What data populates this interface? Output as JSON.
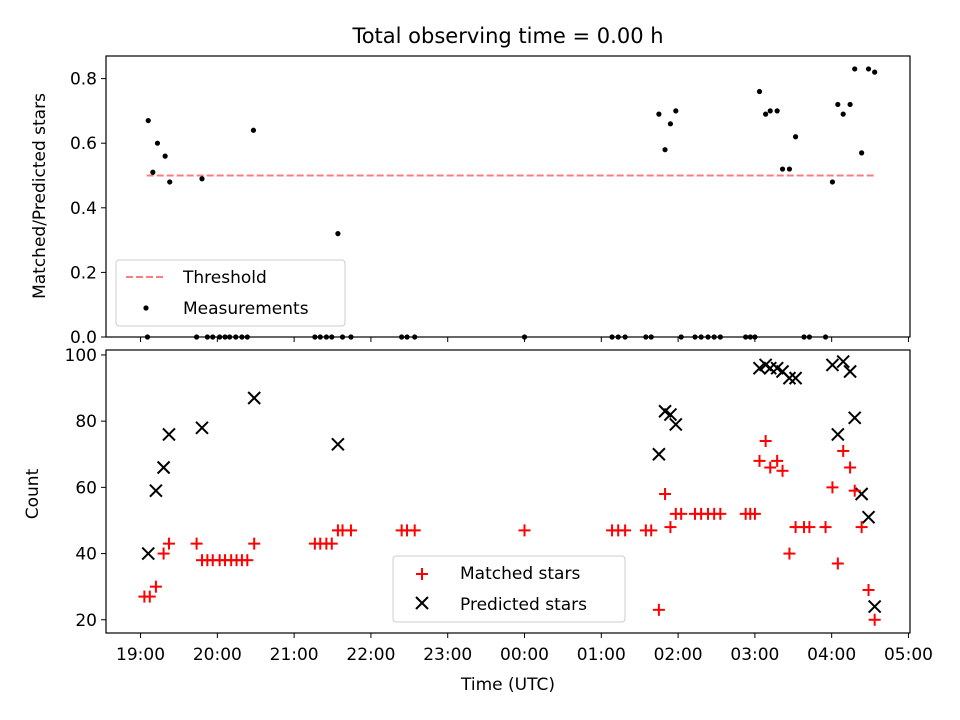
{
  "chart_data": [
    {
      "type": "scatter",
      "title": "Total observing time = 0.00 h",
      "ylabel": "Matched/Predicted stars",
      "xlabel": "",
      "xlim": [
        18.55,
        29.02
      ],
      "ylim": [
        0,
        0.87
      ],
      "yticks": [
        0.0,
        0.2,
        0.4,
        0.6,
        0.8
      ],
      "ytick_labels": [
        "0.0",
        "0.2",
        "0.4",
        "0.6",
        "0.8"
      ],
      "xticks": [
        19,
        20,
        21,
        22,
        23,
        24,
        25,
        26,
        27,
        28,
        29
      ],
      "legend": {
        "position": "lower-left",
        "entries": [
          {
            "label": "Threshold",
            "style": "dashed-line",
            "color": "#f77f7f"
          },
          {
            "label": "Measurements",
            "style": "dot",
            "color": "#000000"
          }
        ]
      },
      "threshold": {
        "name": "Threshold",
        "x": [
          19.08,
          28.57
        ],
        "y": 0.5,
        "color": "#f77f7f"
      },
      "series": [
        {
          "name": "Measurements",
          "color": "#000000",
          "x": [
            19.1,
            19.16,
            19.22,
            19.32,
            19.38,
            19.8,
            20.47,
            21.57,
            25.75,
            25.83,
            25.9,
            25.97,
            27.06,
            27.14,
            27.2,
            27.29,
            27.36,
            27.45,
            27.53,
            28.01,
            28.08,
            28.15,
            28.24,
            28.3,
            28.39,
            28.48,
            28.56,
            19.09,
            19.73,
            19.87,
            19.94,
            20.03,
            20.1,
            20.16,
            20.24,
            20.32,
            20.39,
            21.27,
            21.34,
            21.42,
            21.49,
            21.63,
            21.74,
            22.4,
            22.47,
            22.57,
            24.0,
            25.14,
            25.22,
            25.31,
            25.58,
            25.65,
            26.04,
            26.22,
            26.3,
            26.39,
            26.47,
            26.55,
            26.88,
            26.94,
            27.0,
            27.64,
            27.71,
            27.92
          ],
          "y": [
            0.67,
            0.51,
            0.6,
            0.56,
            0.48,
            0.49,
            0.64,
            0.32,
            0.69,
            0.58,
            0.66,
            0.7,
            0.76,
            0.69,
            0.7,
            0.7,
            0.52,
            0.52,
            0.62,
            0.48,
            0.72,
            0.69,
            0.72,
            0.83,
            0.57,
            0.83,
            0.82,
            0,
            0,
            0,
            0,
            0,
            0,
            0,
            0,
            0,
            0,
            0,
            0,
            0,
            0,
            0,
            0,
            0,
            0,
            0,
            0,
            0,
            0,
            0,
            0,
            0,
            0,
            0,
            0,
            0,
            0,
            0,
            0,
            0,
            0,
            0,
            0,
            0
          ]
        }
      ]
    },
    {
      "type": "scatter",
      "title": "",
      "xlabel": "Time (UTC)",
      "ylabel": "Count",
      "xlim": [
        18.55,
        29.02
      ],
      "ylim": [
        16,
        101.5
      ],
      "yticks": [
        20,
        40,
        60,
        80,
        100
      ],
      "ytick_labels": [
        "20",
        "40",
        "60",
        "80",
        "100"
      ],
      "xticks": [
        19,
        20,
        21,
        22,
        23,
        24,
        25,
        26,
        27,
        28,
        29
      ],
      "xtick_labels": [
        "19:00",
        "20:00",
        "21:00",
        "22:00",
        "23:00",
        "00:00",
        "01:00",
        "02:00",
        "03:00",
        "04:00",
        "05:00"
      ],
      "legend": {
        "position": "lower-center",
        "entries": [
          {
            "label": "Matched stars",
            "style": "plus",
            "color": "#ff0000"
          },
          {
            "label": "Predicted stars",
            "style": "x",
            "color": "#000000"
          }
        ]
      },
      "series": [
        {
          "name": "Matched stars",
          "marker": "plus",
          "color": "#ff0000",
          "x": [
            19.05,
            19.12,
            19.2,
            19.3,
            19.37,
            19.73,
            19.8,
            19.87,
            19.94,
            20.03,
            20.1,
            20.18,
            20.25,
            20.32,
            20.39,
            20.48,
            21.27,
            21.34,
            21.42,
            21.49,
            21.57,
            21.63,
            21.74,
            22.4,
            22.47,
            22.57,
            24.0,
            25.14,
            25.22,
            25.31,
            25.58,
            25.65,
            25.75,
            25.83,
            25.9,
            25.97,
            26.04,
            26.22,
            26.3,
            26.39,
            26.47,
            26.55,
            26.88,
            26.94,
            27.0,
            27.06,
            27.14,
            27.2,
            27.29,
            27.36,
            27.45,
            27.53,
            27.64,
            27.71,
            27.92,
            28.01,
            28.08,
            28.15,
            28.24,
            28.3,
            28.39,
            28.48,
            28.56
          ],
          "y": [
            27,
            27,
            30,
            40,
            43,
            43,
            38,
            38,
            38,
            38,
            38,
            38,
            38,
            38,
            38,
            43,
            43,
            43,
            43,
            43,
            47,
            47,
            47,
            47,
            47,
            47,
            47,
            47,
            47,
            47,
            47,
            47,
            23,
            58,
            48,
            52,
            52,
            52,
            52,
            52,
            52,
            52,
            52,
            52,
            52,
            68,
            74,
            66,
            68,
            65,
            40,
            48,
            48,
            48,
            48,
            60,
            37,
            71,
            66,
            59,
            48,
            29,
            20
          ]
        },
        {
          "name": "Predicted stars",
          "marker": "x",
          "color": "#000000",
          "x": [
            19.1,
            19.2,
            19.3,
            19.37,
            19.8,
            20.48,
            21.57,
            25.75,
            25.83,
            25.9,
            25.97,
            27.06,
            27.14,
            27.2,
            27.29,
            27.36,
            27.45,
            27.53,
            28.01,
            28.08,
            28.15,
            28.24,
            28.3,
            28.39,
            28.48,
            28.56
          ],
          "y": [
            40,
            59,
            66,
            76,
            78,
            87,
            73,
            70,
            83,
            82,
            79,
            96,
            97,
            96,
            96,
            95,
            93,
            93,
            97,
            76,
            98,
            95,
            81,
            58,
            51,
            24
          ]
        }
      ]
    }
  ]
}
